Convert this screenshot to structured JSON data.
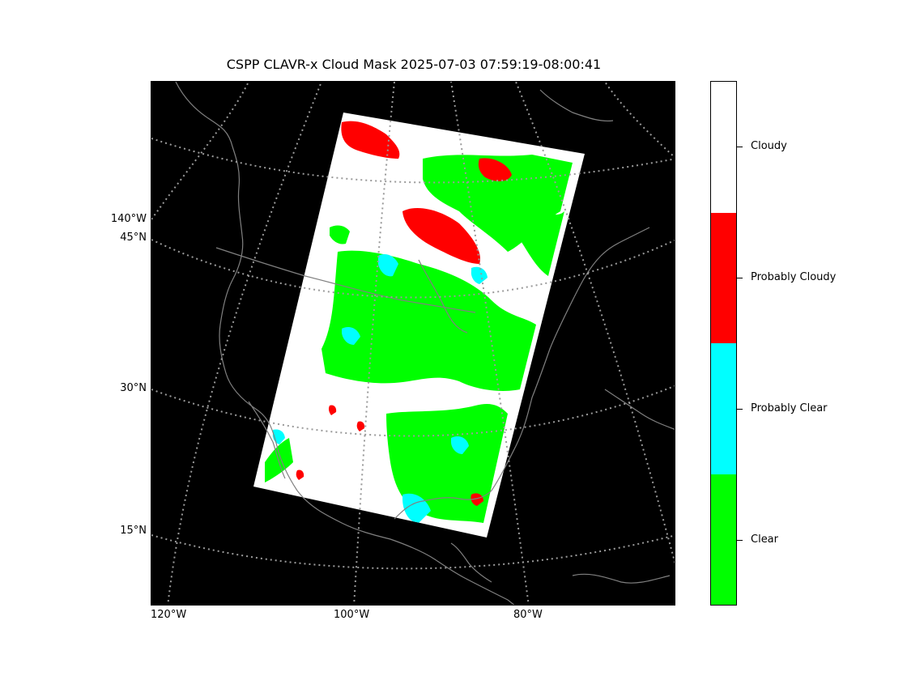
{
  "title": "CSPP CLAVR-x Cloud Mask 2025-07-03 07:59:19-08:00:41",
  "map": {
    "background": "#000000",
    "coastline_color": "#808080",
    "gridline_color": "#9a9a9a",
    "longitude_labels": [
      "120°W",
      "100°W",
      "80°W"
    ],
    "latitude_labels": [
      "140°W",
      "45°N",
      "30°N",
      "15°N"
    ]
  },
  "colorbar": {
    "categories": [
      {
        "label": "Cloudy",
        "color": "#ffffff"
      },
      {
        "label": "Probably Cloudy",
        "color": "#ff0000"
      },
      {
        "label": "Probably Clear",
        "color": "#00ffff"
      },
      {
        "label": "Clear",
        "color": "#00ff00"
      }
    ]
  }
}
